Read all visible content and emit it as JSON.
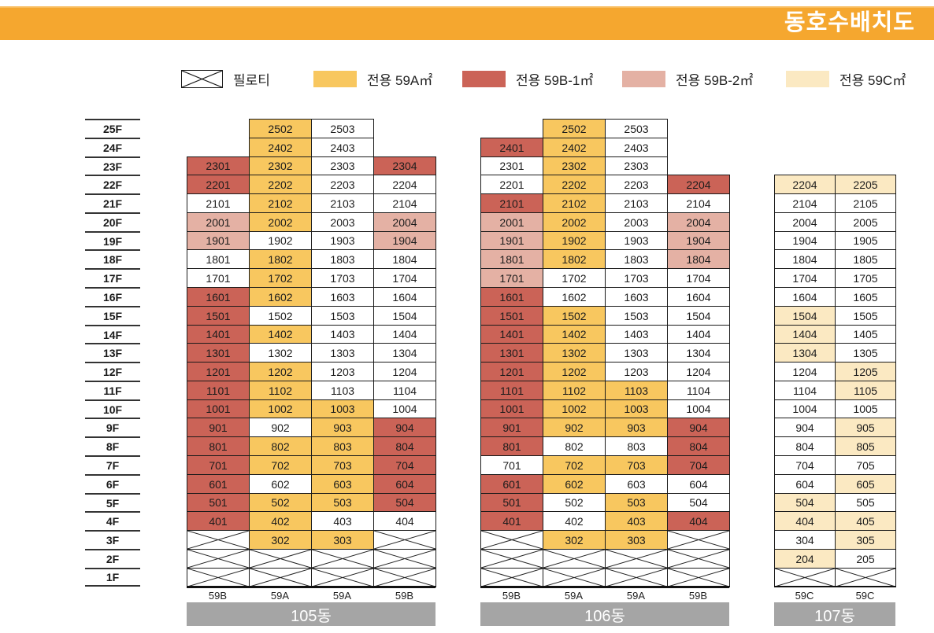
{
  "title": "동호수배치도",
  "legend": [
    {
      "key": "X",
      "label": "필로티"
    },
    {
      "key": "A",
      "label": "전용 59A㎡",
      "color": "#F8C75F"
    },
    {
      "key": "B1",
      "label": "전용 59B-1㎡",
      "color": "#CB6357"
    },
    {
      "key": "B2",
      "label": "전용 59B-2㎡",
      "color": "#E4B1A4"
    },
    {
      "key": "C",
      "label": "전용 59C㎡",
      "color": "#FBE9C2"
    }
  ],
  "colors": {
    "banner": "#F5A72F",
    "building_label_bg": "#A5A5A5",
    "cell_border": "#1a1a1a",
    "white_cell": "#ffffff"
  },
  "floors": [
    "25F",
    "24F",
    "23F",
    "22F",
    "21F",
    "20F",
    "19F",
    "18F",
    "17F",
    "16F",
    "15F",
    "14F",
    "13F",
    "12F",
    "11F",
    "10F",
    "9F",
    "8F",
    "7F",
    "6F",
    "5F",
    "4F",
    "3F",
    "2F",
    "1F"
  ],
  "buildings": [
    {
      "name": "105동",
      "unit_types": [
        "59B",
        "59A",
        "59A",
        "59B"
      ],
      "rows": [
        [
          null,
          [
            "2502",
            "A"
          ],
          [
            "2503",
            "W"
          ],
          null
        ],
        [
          null,
          [
            "2402",
            "A"
          ],
          [
            "2403",
            "W"
          ],
          null
        ],
        [
          [
            "2301",
            "B1"
          ],
          [
            "2302",
            "A"
          ],
          [
            "2303",
            "W"
          ],
          [
            "2304",
            "B1"
          ]
        ],
        [
          [
            "2201",
            "B1"
          ],
          [
            "2202",
            "A"
          ],
          [
            "2203",
            "W"
          ],
          [
            "2204",
            "W"
          ]
        ],
        [
          [
            "2101",
            "W"
          ],
          [
            "2102",
            "A"
          ],
          [
            "2103",
            "W"
          ],
          [
            "2104",
            "W"
          ]
        ],
        [
          [
            "2001",
            "B2"
          ],
          [
            "2002",
            "A"
          ],
          [
            "2003",
            "W"
          ],
          [
            "2004",
            "B2"
          ]
        ],
        [
          [
            "1901",
            "B2"
          ],
          [
            "1902",
            "W"
          ],
          [
            "1903",
            "W"
          ],
          [
            "1904",
            "B2"
          ]
        ],
        [
          [
            "1801",
            "W"
          ],
          [
            "1802",
            "A"
          ],
          [
            "1803",
            "W"
          ],
          [
            "1804",
            "W"
          ]
        ],
        [
          [
            "1701",
            "W"
          ],
          [
            "1702",
            "A"
          ],
          [
            "1703",
            "W"
          ],
          [
            "1704",
            "W"
          ]
        ],
        [
          [
            "1601",
            "B1"
          ],
          [
            "1602",
            "A"
          ],
          [
            "1603",
            "W"
          ],
          [
            "1604",
            "W"
          ]
        ],
        [
          [
            "1501",
            "B1"
          ],
          [
            "1502",
            "W"
          ],
          [
            "1503",
            "W"
          ],
          [
            "1504",
            "W"
          ]
        ],
        [
          [
            "1401",
            "B1"
          ],
          [
            "1402",
            "A"
          ],
          [
            "1403",
            "W"
          ],
          [
            "1404",
            "W"
          ]
        ],
        [
          [
            "1301",
            "B1"
          ],
          [
            "1302",
            "W"
          ],
          [
            "1303",
            "W"
          ],
          [
            "1304",
            "W"
          ]
        ],
        [
          [
            "1201",
            "B1"
          ],
          [
            "1202",
            "A"
          ],
          [
            "1203",
            "W"
          ],
          [
            "1204",
            "W"
          ]
        ],
        [
          [
            "1101",
            "B1"
          ],
          [
            "1102",
            "A"
          ],
          [
            "1103",
            "W"
          ],
          [
            "1104",
            "W"
          ]
        ],
        [
          [
            "1001",
            "B1"
          ],
          [
            "1002",
            "A"
          ],
          [
            "1003",
            "A"
          ],
          [
            "1004",
            "W"
          ]
        ],
        [
          [
            "901",
            "B1"
          ],
          [
            "902",
            "W"
          ],
          [
            "903",
            "A"
          ],
          [
            "904",
            "B1"
          ]
        ],
        [
          [
            "801",
            "B1"
          ],
          [
            "802",
            "A"
          ],
          [
            "803",
            "A"
          ],
          [
            "804",
            "B1"
          ]
        ],
        [
          [
            "701",
            "B1"
          ],
          [
            "702",
            "A"
          ],
          [
            "703",
            "A"
          ],
          [
            "704",
            "B1"
          ]
        ],
        [
          [
            "601",
            "B1"
          ],
          [
            "602",
            "W"
          ],
          [
            "603",
            "A"
          ],
          [
            "604",
            "B1"
          ]
        ],
        [
          [
            "501",
            "B1"
          ],
          [
            "502",
            "A"
          ],
          [
            "503",
            "A"
          ],
          [
            "504",
            "B1"
          ]
        ],
        [
          [
            "401",
            "B1"
          ],
          [
            "402",
            "A"
          ],
          [
            "403",
            "W"
          ],
          [
            "404",
            "W"
          ]
        ],
        [
          "X",
          [
            "302",
            "A"
          ],
          [
            "303",
            "A"
          ],
          "X"
        ],
        [
          "X",
          "X",
          "X",
          "X"
        ],
        [
          "X",
          "X",
          "X",
          "X"
        ]
      ]
    },
    {
      "name": "106동",
      "unit_types": [
        "59B",
        "59A",
        "59A",
        "59B"
      ],
      "rows": [
        [
          null,
          [
            "2502",
            "A"
          ],
          [
            "2503",
            "W"
          ],
          null
        ],
        [
          [
            "2401",
            "B1"
          ],
          [
            "2402",
            "A"
          ],
          [
            "2403",
            "W"
          ],
          null
        ],
        [
          [
            "2301",
            "W"
          ],
          [
            "2302",
            "A"
          ],
          [
            "2303",
            "W"
          ],
          null
        ],
        [
          [
            "2201",
            "W"
          ],
          [
            "2202",
            "A"
          ],
          [
            "2203",
            "W"
          ],
          [
            "2204",
            "B1"
          ]
        ],
        [
          [
            "2101",
            "B1"
          ],
          [
            "2102",
            "A"
          ],
          [
            "2103",
            "W"
          ],
          [
            "2104",
            "W"
          ]
        ],
        [
          [
            "2001",
            "B2"
          ],
          [
            "2002",
            "A"
          ],
          [
            "2003",
            "W"
          ],
          [
            "2004",
            "B2"
          ]
        ],
        [
          [
            "1901",
            "B2"
          ],
          [
            "1902",
            "A"
          ],
          [
            "1903",
            "W"
          ],
          [
            "1904",
            "B2"
          ]
        ],
        [
          [
            "1801",
            "B2"
          ],
          [
            "1802",
            "A"
          ],
          [
            "1803",
            "W"
          ],
          [
            "1804",
            "B2"
          ]
        ],
        [
          [
            "1701",
            "B2"
          ],
          [
            "1702",
            "W"
          ],
          [
            "1703",
            "W"
          ],
          [
            "1704",
            "W"
          ]
        ],
        [
          [
            "1601",
            "B1"
          ],
          [
            "1602",
            "W"
          ],
          [
            "1603",
            "W"
          ],
          [
            "1604",
            "W"
          ]
        ],
        [
          [
            "1501",
            "B1"
          ],
          [
            "1502",
            "A"
          ],
          [
            "1503",
            "W"
          ],
          [
            "1504",
            "W"
          ]
        ],
        [
          [
            "1401",
            "B1"
          ],
          [
            "1402",
            "A"
          ],
          [
            "1403",
            "W"
          ],
          [
            "1404",
            "W"
          ]
        ],
        [
          [
            "1301",
            "B1"
          ],
          [
            "1302",
            "A"
          ],
          [
            "1303",
            "W"
          ],
          [
            "1304",
            "W"
          ]
        ],
        [
          [
            "1201",
            "B1"
          ],
          [
            "1202",
            "A"
          ],
          [
            "1203",
            "W"
          ],
          [
            "1204",
            "W"
          ]
        ],
        [
          [
            "1101",
            "B1"
          ],
          [
            "1102",
            "A"
          ],
          [
            "1103",
            "A"
          ],
          [
            "1104",
            "W"
          ]
        ],
        [
          [
            "1001",
            "B1"
          ],
          [
            "1002",
            "A"
          ],
          [
            "1003",
            "A"
          ],
          [
            "1004",
            "W"
          ]
        ],
        [
          [
            "901",
            "B1"
          ],
          [
            "902",
            "A"
          ],
          [
            "903",
            "A"
          ],
          [
            "904",
            "B1"
          ]
        ],
        [
          [
            "801",
            "B1"
          ],
          [
            "802",
            "W"
          ],
          [
            "803",
            "W"
          ],
          [
            "804",
            "B1"
          ]
        ],
        [
          [
            "701",
            "W"
          ],
          [
            "702",
            "A"
          ],
          [
            "703",
            "A"
          ],
          [
            "704",
            "B1"
          ]
        ],
        [
          [
            "601",
            "B1"
          ],
          [
            "602",
            "A"
          ],
          [
            "603",
            "W"
          ],
          [
            "604",
            "W"
          ]
        ],
        [
          [
            "501",
            "B1"
          ],
          [
            "502",
            "W"
          ],
          [
            "503",
            "A"
          ],
          [
            "504",
            "W"
          ]
        ],
        [
          [
            "401",
            "B1"
          ],
          [
            "402",
            "W"
          ],
          [
            "403",
            "A"
          ],
          [
            "404",
            "B1"
          ]
        ],
        [
          "X",
          [
            "302",
            "A"
          ],
          [
            "303",
            "A"
          ],
          "X"
        ],
        [
          "X",
          "X",
          "X",
          "X"
        ],
        [
          "X",
          "X",
          "X",
          "X"
        ]
      ]
    },
    {
      "name": "107동",
      "unit_types": [
        "59C",
        "59C"
      ],
      "rows": [
        [
          null,
          null
        ],
        [
          null,
          null
        ],
        [
          null,
          null
        ],
        [
          [
            "2204",
            "C"
          ],
          [
            "2205",
            "C"
          ]
        ],
        [
          [
            "2104",
            "W"
          ],
          [
            "2105",
            "W"
          ]
        ],
        [
          [
            "2004",
            "W"
          ],
          [
            "2005",
            "W"
          ]
        ],
        [
          [
            "1904",
            "W"
          ],
          [
            "1905",
            "W"
          ]
        ],
        [
          [
            "1804",
            "W"
          ],
          [
            "1805",
            "W"
          ]
        ],
        [
          [
            "1704",
            "W"
          ],
          [
            "1705",
            "W"
          ]
        ],
        [
          [
            "1604",
            "W"
          ],
          [
            "1605",
            "W"
          ]
        ],
        [
          [
            "1504",
            "C"
          ],
          [
            "1505",
            "W"
          ]
        ],
        [
          [
            "1404",
            "C"
          ],
          [
            "1405",
            "W"
          ]
        ],
        [
          [
            "1304",
            "C"
          ],
          [
            "1305",
            "W"
          ]
        ],
        [
          [
            "1204",
            "W"
          ],
          [
            "1205",
            "C"
          ]
        ],
        [
          [
            "1104",
            "W"
          ],
          [
            "1105",
            "C"
          ]
        ],
        [
          [
            "1004",
            "W"
          ],
          [
            "1005",
            "W"
          ]
        ],
        [
          [
            "904",
            "W"
          ],
          [
            "905",
            "C"
          ]
        ],
        [
          [
            "804",
            "W"
          ],
          [
            "805",
            "C"
          ]
        ],
        [
          [
            "704",
            "W"
          ],
          [
            "705",
            "W"
          ]
        ],
        [
          [
            "604",
            "W"
          ],
          [
            "605",
            "C"
          ]
        ],
        [
          [
            "504",
            "C"
          ],
          [
            "505",
            "W"
          ]
        ],
        [
          [
            "404",
            "C"
          ],
          [
            "405",
            "C"
          ]
        ],
        [
          [
            "304",
            "W"
          ],
          [
            "305",
            "C"
          ]
        ],
        [
          [
            "204",
            "C"
          ],
          [
            "205",
            "W"
          ]
        ],
        [
          "X",
          "X"
        ]
      ]
    }
  ]
}
